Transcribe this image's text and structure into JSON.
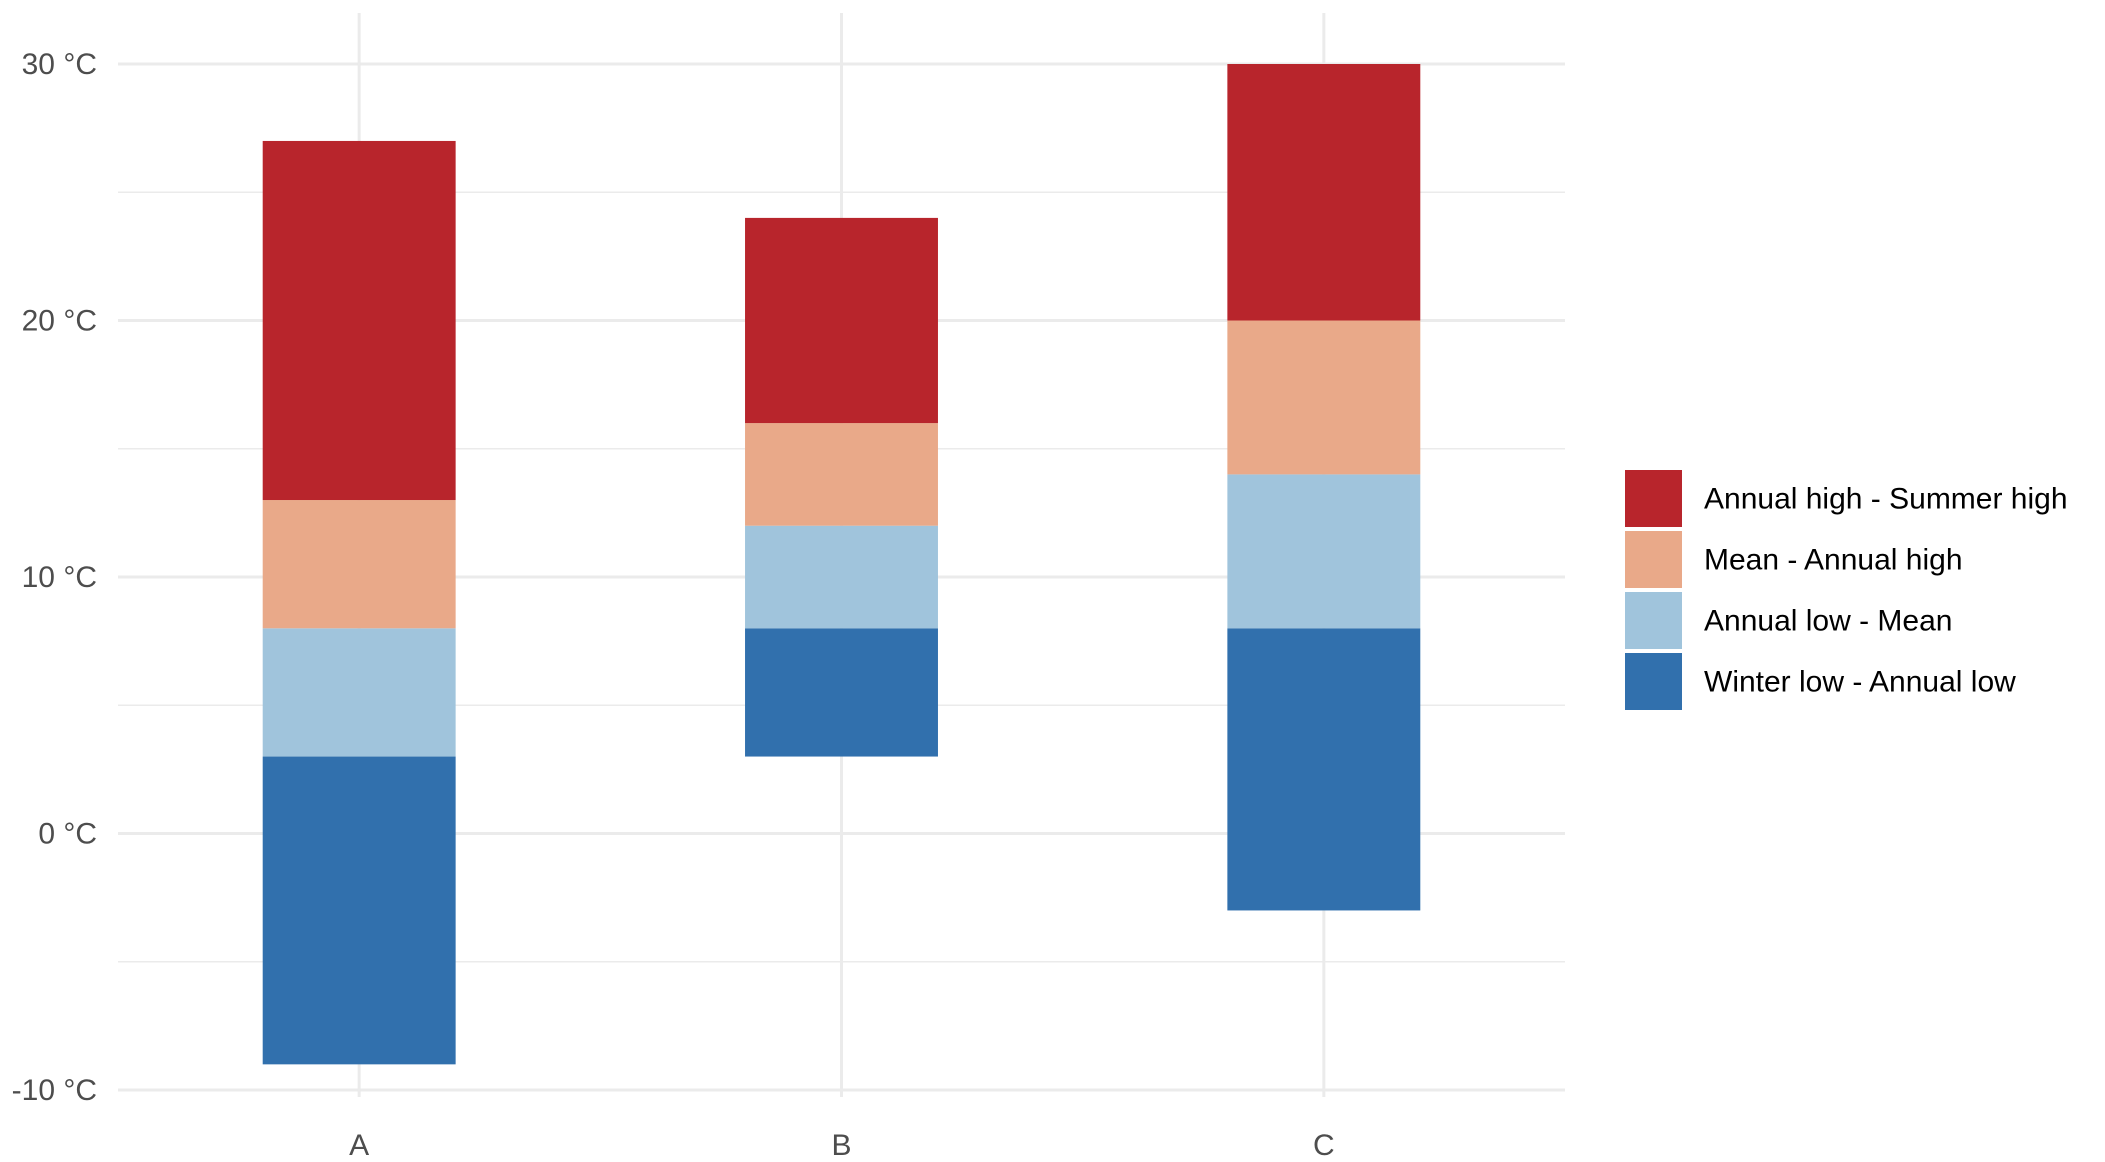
{
  "chart_data": {
    "type": "bar",
    "stacked": "floating range segments",
    "categories": [
      "A",
      "B",
      "C"
    ],
    "y_unit": "°C",
    "ylim": [
      -10,
      30
    ],
    "y_ticks": [
      -10,
      0,
      10,
      20,
      30
    ],
    "y_tick_labels": [
      "-10 °C",
      "0 °C",
      "10 °C",
      "20 °C",
      "30 °C"
    ],
    "grid": true,
    "legend_position": "right",
    "title": "",
    "xlabel": "",
    "ylabel": "",
    "series": [
      {
        "name": "Winter low - Annual low",
        "color": "#3170ad",
        "ranges": [
          [
            -9,
            3
          ],
          [
            3,
            8
          ],
          [
            -3,
            8
          ]
        ]
      },
      {
        "name": "Annual low - Mean",
        "color": "#a0c4dc",
        "ranges": [
          [
            3,
            8
          ],
          [
            8,
            12
          ],
          [
            8,
            14
          ]
        ]
      },
      {
        "name": "Mean - Annual high",
        "color": "#e9a989",
        "ranges": [
          [
            8,
            13
          ],
          [
            12,
            16
          ],
          [
            14,
            20
          ]
        ]
      },
      {
        "name": "Annual high - Summer high",
        "color": "#b8252c",
        "ranges": [
          [
            13,
            27
          ],
          [
            16,
            24
          ],
          [
            20,
            30
          ]
        ]
      }
    ],
    "legend_order": [
      "Annual high - Summer high",
      "Mean - Annual high",
      "Annual low - Mean",
      "Winter low - Annual low"
    ]
  }
}
